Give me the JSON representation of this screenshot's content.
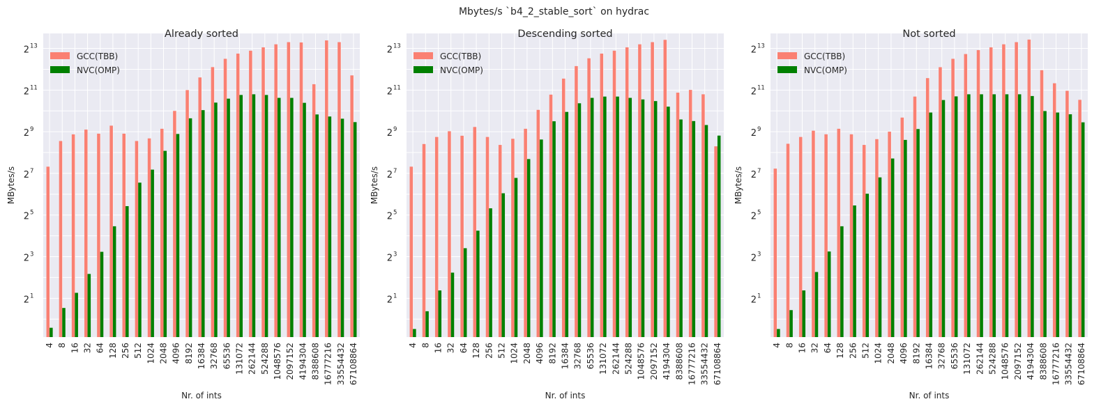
{
  "figure_title": "Mbytes/s `b4_2_stable_sort` on hydrac",
  "chart_data": [
    {
      "type": "bar",
      "title": "Already sorted",
      "xlabel": "Nr. of ints",
      "ylabel": "MBytes/s",
      "yscale": "log2",
      "ylim": [
        0.55,
        13500
      ],
      "yticks": [
        1,
        3,
        5,
        7,
        9,
        11,
        13
      ],
      "grid": true,
      "legend": "top-left",
      "categories": [
        "4",
        "8",
        "16",
        "32",
        "64",
        "128",
        "256",
        "512",
        "1024",
        "2048",
        "4096",
        "8192",
        "16384",
        "32768",
        "65536",
        "131072",
        "262144",
        "524288",
        "1048576",
        "2097152",
        "4194304",
        "8388608",
        "16777216",
        "33554432",
        "67108864"
      ],
      "series": [
        {
          "name": "GCC(TBB)",
          "color": "#fa8072",
          "values": [
            160,
            376,
            469,
            550,
            480,
            627,
            480,
            376,
            410,
            565,
            1024,
            2048,
            3120,
            4400,
            5800,
            6900,
            7600,
            8500,
            9400,
            10100,
            10000,
            2490,
            10700,
            10100,
            3340
          ]
        },
        {
          "name": "NVC(OMP)",
          "color": "#008000",
          "values": [
            0.75,
            1.45,
            2.4,
            4.5,
            9.4,
            22,
            43,
            94,
            145,
            271,
            475,
            800,
            1050,
            1350,
            1540,
            1740,
            1780,
            1740,
            1580,
            1580,
            1340,
            910,
            850,
            790,
            705
          ]
        }
      ]
    },
    {
      "type": "bar",
      "title": "Descending sorted",
      "xlabel": "Nr. of ints",
      "ylabel": "MBytes/s",
      "yscale": "log2",
      "ylim": [
        0.55,
        13500
      ],
      "yticks": [
        1,
        3,
        5,
        7,
        9,
        11,
        13
      ],
      "grid": true,
      "legend": "top-left",
      "categories": [
        "4",
        "8",
        "16",
        "32",
        "64",
        "128",
        "256",
        "512",
        "1024",
        "2048",
        "4096",
        "8192",
        "16384",
        "32768",
        "65536",
        "131072",
        "262144",
        "524288",
        "1048576",
        "2097152",
        "4194304",
        "8388608",
        "16777216",
        "33554432",
        "67108864"
      ],
      "series": [
        {
          "name": "GCC(TBB)",
          "color": "#fa8072",
          "values": [
            160,
            340,
            430,
            520,
            448,
            600,
            430,
            330,
            405,
            565,
            1060,
            1760,
            3000,
            4550,
            5900,
            6900,
            7600,
            8500,
            9400,
            10100,
            10900,
            1880,
            2060,
            1780,
            315
          ]
        },
        {
          "name": "NVC(OMP)",
          "color": "#008000",
          "values": [
            0.72,
            1.3,
            2.6,
            4.7,
            10.6,
            19,
            40,
            66,
            110,
            206,
            395,
            725,
            990,
            1320,
            1580,
            1650,
            1650,
            1580,
            1500,
            1420,
            1180,
            770,
            730,
            640,
            450
          ]
        }
      ]
    },
    {
      "type": "bar",
      "title": "Not sorted",
      "xlabel": "Nr. of ints",
      "ylabel": "MBytes/s",
      "yscale": "log2",
      "ylim": [
        0.55,
        13500
      ],
      "yticks": [
        1,
        3,
        5,
        7,
        9,
        11,
        13
      ],
      "grid": true,
      "legend": "top-left",
      "categories": [
        "4",
        "8",
        "16",
        "32",
        "64",
        "128",
        "256",
        "512",
        "1024",
        "2048",
        "4096",
        "8192",
        "16384",
        "32768",
        "65536",
        "131072",
        "262144",
        "524288",
        "1048576",
        "2097152",
        "4194304",
        "8388608",
        "16777216",
        "33554432",
        "67108864"
      ],
      "series": [
        {
          "name": "GCC(TBB)",
          "color": "#fa8072",
          "values": [
            150,
            343,
            430,
            530,
            470,
            565,
            470,
            330,
            400,
            513,
            820,
            1650,
            3050,
            4390,
            5800,
            6800,
            7750,
            8500,
            9400,
            10100,
            11000,
            3970,
            2570,
            2000,
            1480
          ]
        },
        {
          "name": "NVC(OMP)",
          "color": "#008000",
          "values": [
            0.72,
            1.35,
            2.6,
            4.8,
            9.5,
            22,
            44,
            65,
            112,
            210,
            390,
            560,
            970,
            1470,
            1660,
            1780,
            1780,
            1780,
            1780,
            1780,
            1680,
            1020,
            970,
            915,
            700
          ]
        }
      ]
    }
  ]
}
